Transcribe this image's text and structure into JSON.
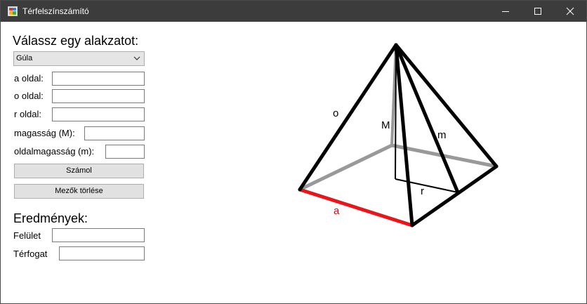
{
  "window": {
    "title": "Térfelszínszámító",
    "icon": "app-window-icon",
    "controls": {
      "minimize": "minimize-icon",
      "maximize": "maximize-icon",
      "close": "close-icon"
    }
  },
  "form": {
    "heading": "Válassz egy alakzatot:",
    "shape_select": {
      "value": "Gúla"
    },
    "fields": {
      "a_label": "a oldal:",
      "o_label": "o oldal:",
      "r_label": "r oldal:",
      "M_label": "magasság (M):",
      "m_label": "oldalmagasság (m):"
    },
    "buttons": {
      "calculate": "Számol",
      "clear": "Mezők törlése"
    }
  },
  "results": {
    "heading": "Eredmények:",
    "surface_label": "Felület",
    "volume_label": "Térfogat"
  },
  "figure": {
    "description_labels": {
      "o": "o",
      "M": "M",
      "m": "m",
      "r": "r",
      "a": "a"
    },
    "colors": {
      "edge": "#000000",
      "hidden_edge": "#999999",
      "base_edge_a": "#e8161b",
      "label_a": "#c0141a"
    }
  }
}
